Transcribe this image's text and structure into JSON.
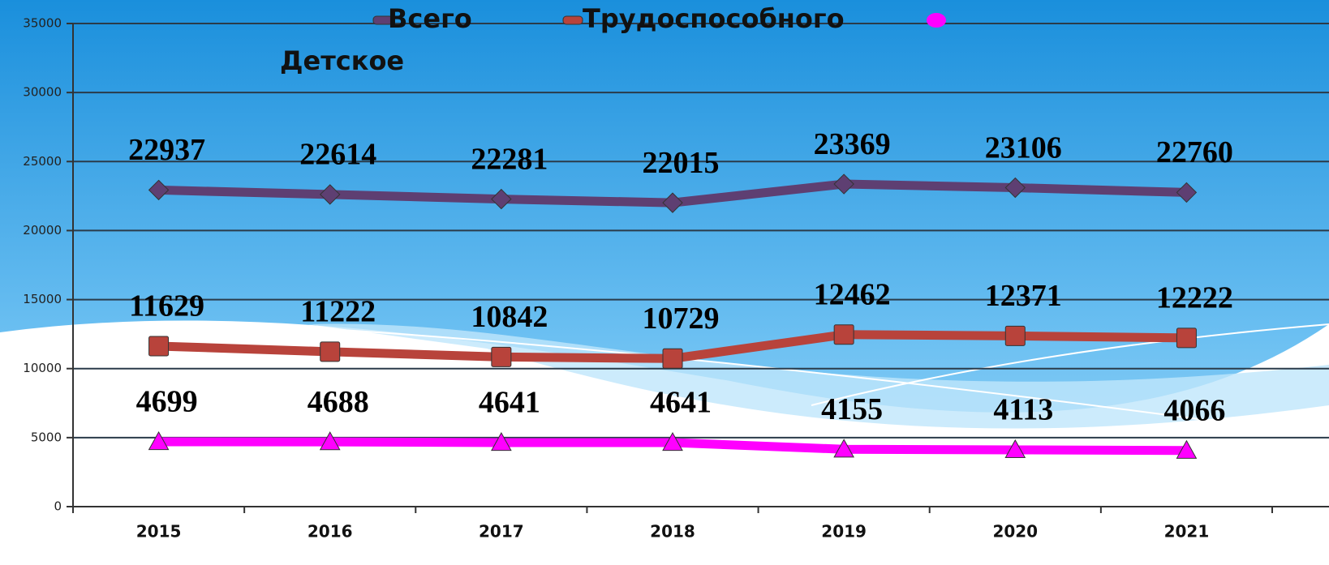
{
  "chart_data": {
    "type": "line",
    "categories": [
      "2015",
      "2016",
      "2017",
      "2018",
      "2019",
      "2020",
      "2021"
    ],
    "series": [
      {
        "name": "Всего",
        "color": "#5e3f72",
        "marker": "diamond",
        "values": [
          22937,
          22614,
          22281,
          22015,
          23369,
          23106,
          22760
        ]
      },
      {
        "name": "Трудоспособного",
        "color": "#b8433b",
        "marker": "square",
        "values": [
          11629,
          11222,
          10842,
          10729,
          12462,
          12371,
          12222
        ]
      },
      {
        "name": "Детское",
        "color": "#ff00ff",
        "marker": "triangle",
        "values": [
          4699,
          4688,
          4641,
          4641,
          4155,
          4113,
          4066
        ]
      }
    ],
    "ylim": [
      0,
      35000
    ],
    "yticks": [
      0,
      5000,
      10000,
      15000,
      20000,
      25000,
      30000,
      35000
    ],
    "grid": true,
    "legend": "top"
  }
}
